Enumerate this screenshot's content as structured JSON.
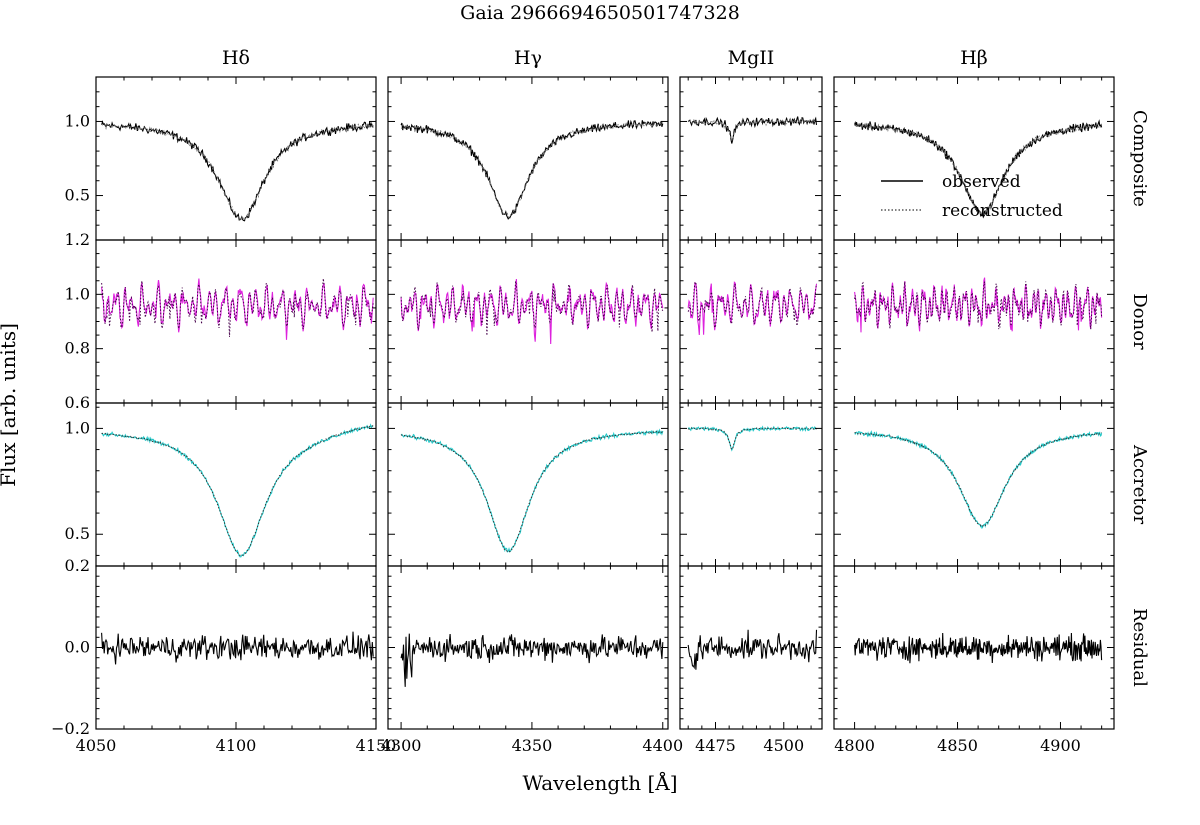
{
  "chart_data": {
    "type": "line",
    "title": "Gaia 2966694650501747328",
    "xlabel": "Wavelength [Å]",
    "ylabel": "Flux [arb. units]",
    "columns": [
      {
        "key": "hdelta",
        "title": "Hδ",
        "xlim": [
          4050,
          4150
        ],
        "xticks": [
          "4050",
          "4100",
          "4150"
        ],
        "xtick_values": [
          4050,
          4100,
          4150
        ],
        "data_range": [
          4052,
          4149
        ],
        "line_center": 4102
      },
      {
        "key": "hgamma",
        "title": "Hγ",
        "xlim": [
          4295,
          4402
        ],
        "xticks": [
          "4300",
          "4350",
          "4400"
        ],
        "xtick_values": [
          4300,
          4350,
          4400
        ],
        "data_range": [
          4300,
          4400
        ],
        "line_center": 4341
      },
      {
        "key": "mgii",
        "title": "MgII",
        "xlim": [
          4462,
          4514
        ],
        "xticks": [
          "4475",
          "4500"
        ],
        "xtick_values": [
          4475,
          4500
        ],
        "data_range": [
          4465,
          4512
        ],
        "line_center": 4481
      },
      {
        "key": "hbeta",
        "title": "Hβ",
        "xlim": [
          4790,
          4926
        ],
        "xticks": [
          "4800",
          "4850",
          "4900"
        ],
        "xtick_values": [
          4800,
          4850,
          4900
        ],
        "data_range": [
          4800,
          4920
        ],
        "line_center": 4862
      }
    ],
    "rows": [
      {
        "key": "composite",
        "label": "Composite",
        "ylim": [
          0.2,
          1.3
        ],
        "yticks": [
          "0.5",
          "1.0"
        ],
        "ytick_values": [
          0.5,
          1.0
        ],
        "edge_label": "",
        "observed_color": "#000000",
        "reconstructed_color": "#777777",
        "dip_depths": {
          "hdelta": 0.66,
          "hgamma": 0.64,
          "mgii": 0.12,
          "hbeta": 0.62
        }
      },
      {
        "key": "donor",
        "label": "Donor",
        "ylim": [
          0.6,
          1.2
        ],
        "yticks": [
          "0.8",
          "1.0"
        ],
        "ytick_values": [
          0.8,
          1.0
        ],
        "edge_label": "1.2",
        "observed_color": "#dd22dd",
        "reconstructed_color": "#44004a",
        "dip_depths": {
          "hdelta": 0.0,
          "hgamma": 0.0,
          "mgii": 0.0,
          "hbeta": 0.0
        }
      },
      {
        "key": "accretor",
        "label": "Accretor",
        "ylim": [
          0.35,
          1.12
        ],
        "yticks": [
          "0.5",
          "1.0"
        ],
        "ytick_values": [
          0.5,
          1.0
        ],
        "edge_label": "0.6",
        "observed_color": "#22c8c8",
        "reconstructed_color": "#333333",
        "dip_depths": {
          "hdelta": 0.6,
          "hgamma": 0.58,
          "mgii": 0.1,
          "hbeta": 0.46
        }
      },
      {
        "key": "residual",
        "label": "Residual",
        "ylim": [
          -0.2,
          0.2
        ],
        "yticks": [
          "−0.2",
          "0.0"
        ],
        "ytick_values": [
          -0.2,
          0.0
        ],
        "edge_label": "0.2",
        "observed_color": "#000000",
        "reconstructed_color": "",
        "dip_depths": {
          "hdelta": 0.0,
          "hgamma": 0.0,
          "mgii": 0.0,
          "hbeta": 0.0
        }
      }
    ],
    "legend": {
      "location": "inside Composite / Hβ panel, lower-right",
      "entries": [
        {
          "label": "observed",
          "style": "solid"
        },
        {
          "label": "reconstructed",
          "style": "dotted"
        }
      ]
    }
  }
}
